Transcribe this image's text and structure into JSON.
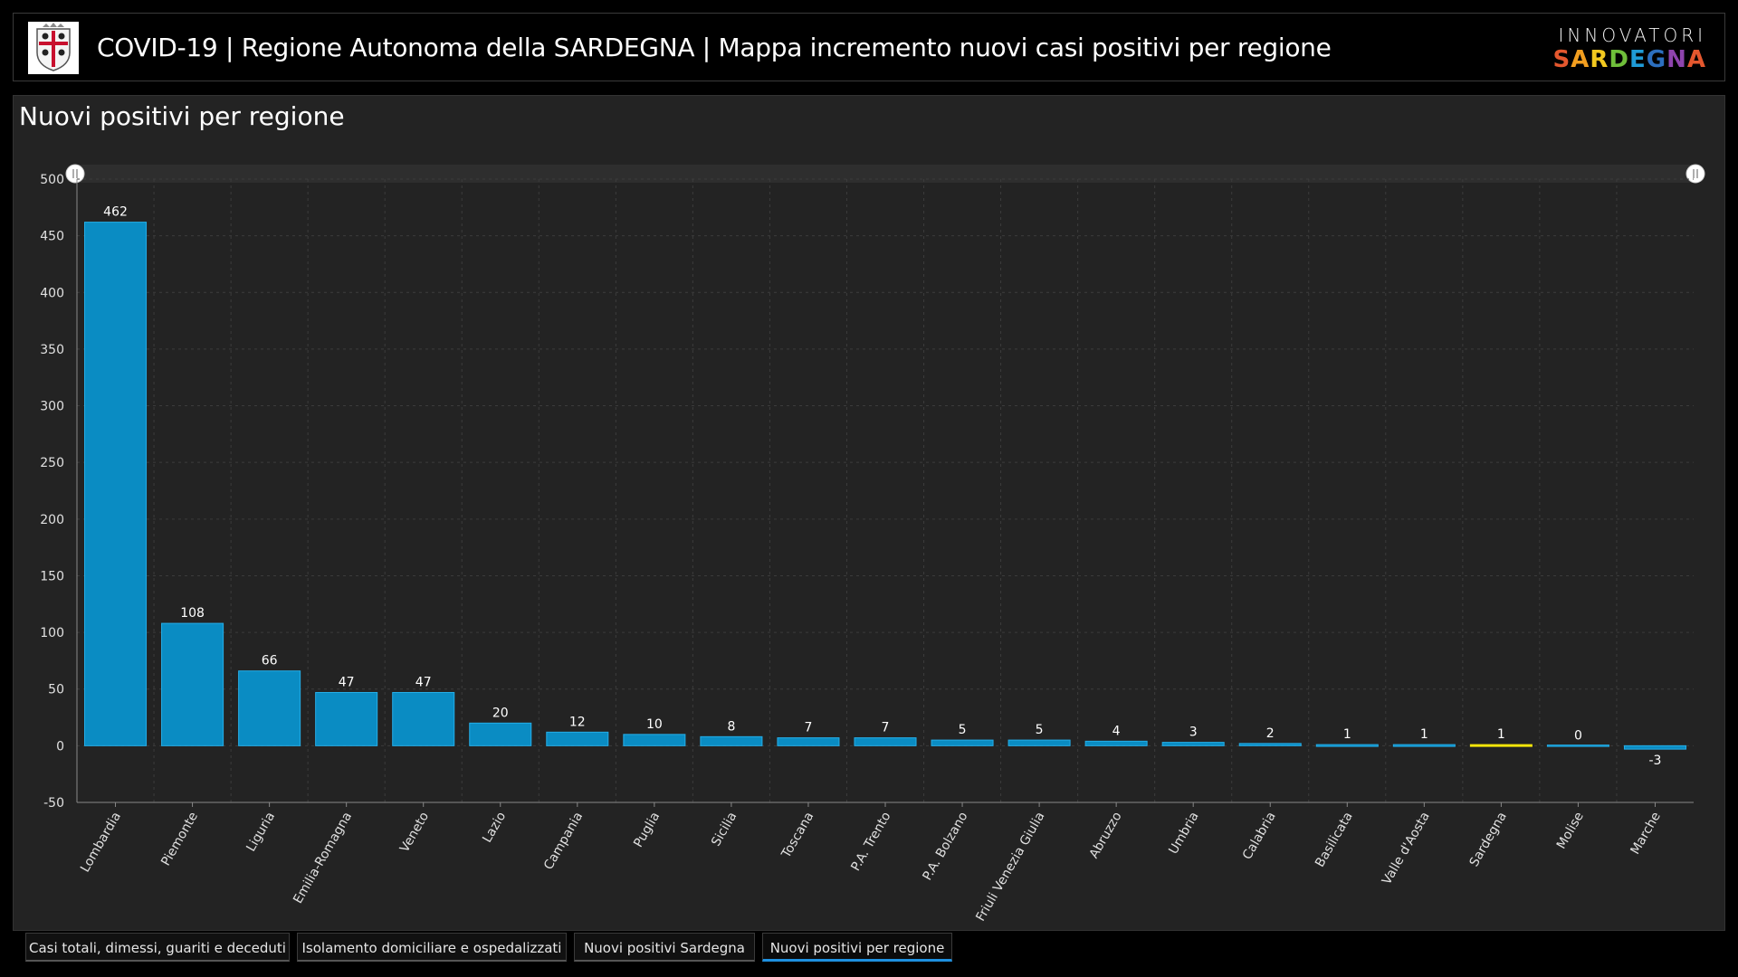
{
  "header": {
    "title": "COVID-19 | Regione Autonoma della SARDEGNA | Mappa incremento nuovi casi positivi per regione",
    "logo_top": "INNOVATORI",
    "logo_bottom": "SARDEGNA",
    "logo_bottom_colors": [
      "#e4572e",
      "#f29e1f",
      "#f2c81f",
      "#6fbf3a",
      "#1f9bd7",
      "#2c6fbf",
      "#8e44ad",
      "#e4572e"
    ],
    "emblem_icon": "sardinia-coat-of-arms-icon"
  },
  "panel": {
    "title": "Nuovi positivi per regione"
  },
  "colors": {
    "bar": "#0a8cc3",
    "bar_border": "#25aee8",
    "highlight_bar": "#f5e60a",
    "grid": "#3c3c3c",
    "axis_text": "#e0e0e0",
    "panel_bg": "#232323",
    "active_tab": "#1e90e0"
  },
  "chart_data": {
    "type": "bar",
    "title": "",
    "xlabel": "",
    "ylabel": "",
    "ylim": [
      -50,
      500
    ],
    "yticks": [
      500,
      450,
      400,
      350,
      300,
      250,
      200,
      150,
      100,
      50,
      0,
      -50
    ],
    "grid": true,
    "highlight": "Sardegna",
    "categories": [
      "Lombardia",
      "Piemonte",
      "Liguria",
      "Emilia-Romagna",
      "Veneto",
      "Lazio",
      "Campania",
      "Puglia",
      "Sicilia",
      "Toscana",
      "P.A. Trento",
      "P.A. Bolzano",
      "Friuli Venezia Giulia",
      "Abruzzo",
      "Umbria",
      "Calabria",
      "Basilicata",
      "Valle d'Aosta",
      "Sardegna",
      "Molise",
      "Marche"
    ],
    "values": [
      462,
      108,
      66,
      47,
      47,
      20,
      12,
      10,
      8,
      7,
      7,
      5,
      5,
      4,
      3,
      2,
      1,
      1,
      1,
      0,
      -3
    ]
  },
  "tabs": [
    {
      "label": "Casi totali, dimessi, guariti e deceduti",
      "active": false
    },
    {
      "label": "Isolamento domiciliare e ospedalizzati",
      "active": false
    },
    {
      "label": "Nuovi positivi Sardegna",
      "active": false
    },
    {
      "label": "Nuovi positivi per regione",
      "active": true
    }
  ]
}
